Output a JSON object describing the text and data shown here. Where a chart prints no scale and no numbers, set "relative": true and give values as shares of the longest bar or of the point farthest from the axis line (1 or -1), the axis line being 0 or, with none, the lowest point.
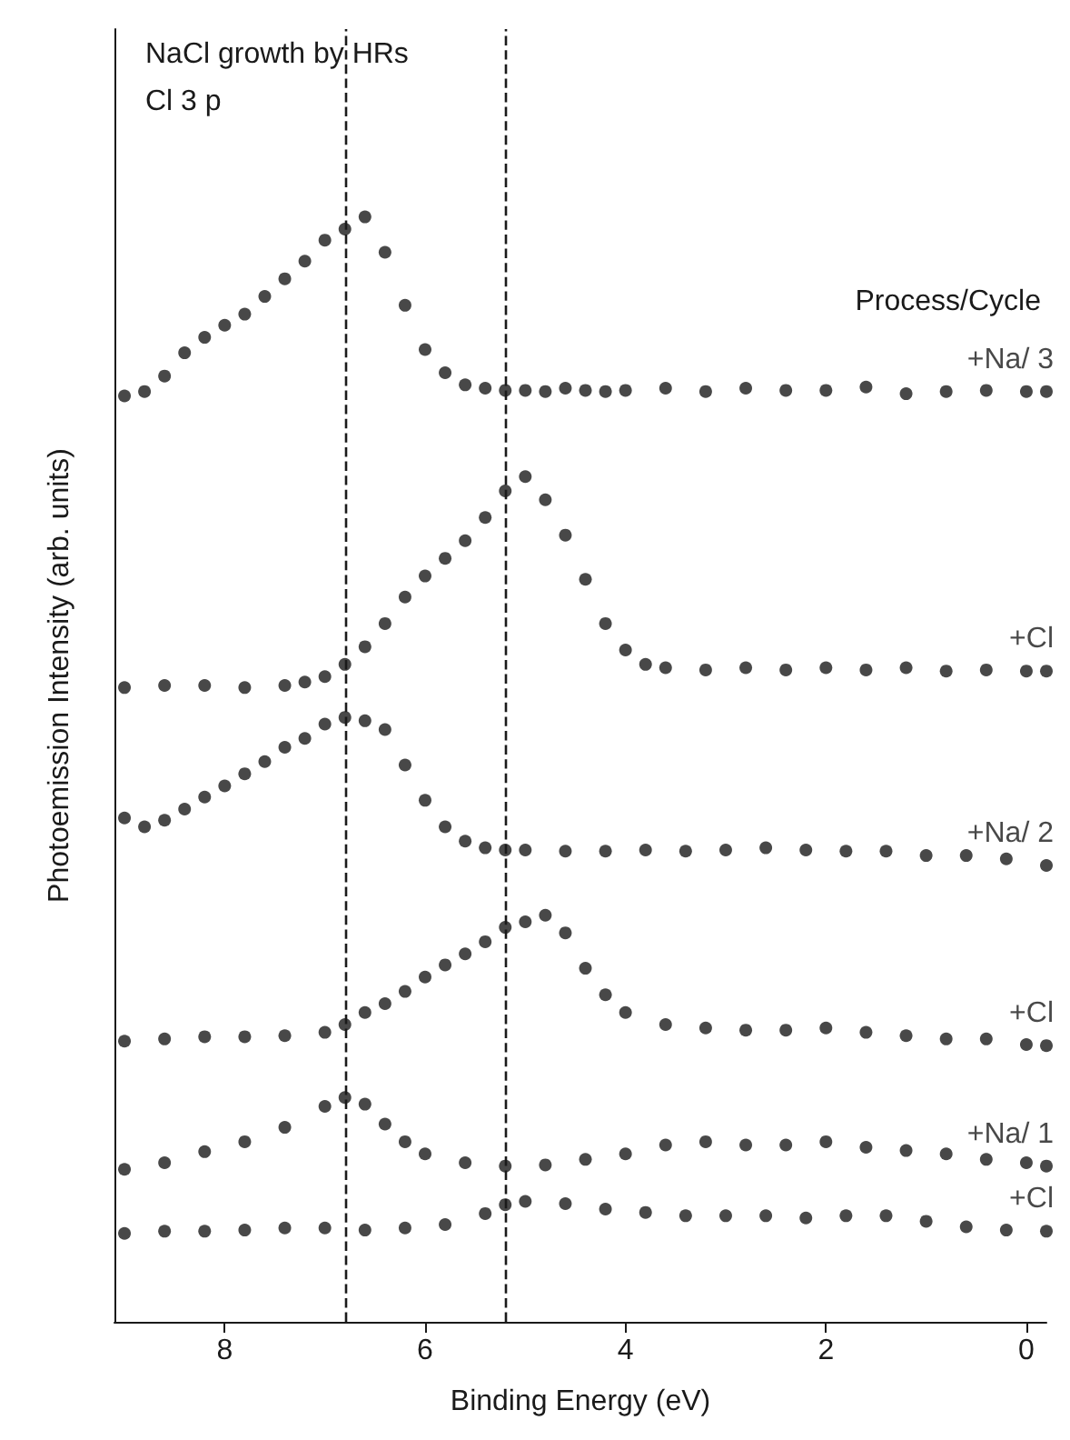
{
  "chart_data": {
    "type": "scatter",
    "relative": true,
    "marker": "circle",
    "xlabel": "Binding Energy (eV)",
    "ylabel": "Photoemission Intensity (arb. units)",
    "legend_title": "Process/Cycle",
    "annotations": [
      "NaCl growth by HRs",
      "Cl 3 p"
    ],
    "xlim": [
      9.1,
      -0.2
    ],
    "xticks": [
      8,
      6,
      4,
      2,
      0
    ],
    "grid": false,
    "legend": false,
    "ref_lines": [
      {
        "axis": "x",
        "value": 6.8,
        "color": "#1a1a1a",
        "line_style": "dashed"
      },
      {
        "axis": "x",
        "value": 5.2,
        "color": "#1a1a1a",
        "line_style": "dashed"
      }
    ],
    "series": [
      {
        "name": "+Na/ 3",
        "color": "#1a1a1a",
        "x": [
          9.0,
          8.8,
          8.6,
          8.4,
          8.2,
          8.0,
          7.8,
          7.6,
          7.4,
          7.2,
          7.0,
          6.8,
          6.6,
          6.4,
          6.2,
          6.0,
          5.8,
          5.6,
          5.4,
          5.2,
          5.0,
          4.8,
          4.6,
          4.4,
          4.2,
          4.0,
          3.6,
          3.2,
          2.8,
          2.4,
          2.0,
          1.6,
          1.2,
          0.8,
          0.4,
          0.0,
          -0.2
        ],
        "values": [
          0.838,
          0.842,
          0.856,
          0.877,
          0.891,
          0.902,
          0.912,
          0.928,
          0.944,
          0.96,
          0.979,
          0.989,
          1.0,
          0.968,
          0.92,
          0.88,
          0.859,
          0.848,
          0.845,
          0.843,
          0.843,
          0.842,
          0.845,
          0.843,
          0.842,
          0.843,
          0.845,
          0.842,
          0.845,
          0.843,
          0.843,
          0.846,
          0.84,
          0.842,
          0.843,
          0.842,
          0.842
        ]
      },
      {
        "name": "+Cl",
        "color": "#1a1a1a",
        "x": [
          9.0,
          8.6,
          8.2,
          7.8,
          7.4,
          7.2,
          7.0,
          6.8,
          6.6,
          6.4,
          6.2,
          6.0,
          5.8,
          5.6,
          5.4,
          5.2,
          5.0,
          4.8,
          4.6,
          4.4,
          4.2,
          4.0,
          3.8,
          3.6,
          3.2,
          2.8,
          2.4,
          2.0,
          1.6,
          1.2,
          0.8,
          0.4,
          0.0,
          -0.2
        ],
        "values": [
          0.574,
          0.576,
          0.576,
          0.574,
          0.576,
          0.579,
          0.584,
          0.595,
          0.611,
          0.632,
          0.656,
          0.675,
          0.691,
          0.707,
          0.728,
          0.752,
          0.765,
          0.744,
          0.712,
          0.672,
          0.632,
          0.608,
          0.595,
          0.592,
          0.59,
          0.592,
          0.59,
          0.592,
          0.59,
          0.592,
          0.589,
          0.59,
          0.589,
          0.589
        ]
      },
      {
        "name": "+Na/ 2",
        "color": "#1a1a1a",
        "x": [
          9.0,
          8.8,
          8.6,
          8.4,
          8.2,
          8.0,
          7.8,
          7.6,
          7.4,
          7.2,
          7.0,
          6.8,
          6.6,
          6.4,
          6.2,
          6.0,
          5.8,
          5.6,
          5.4,
          5.2,
          5.0,
          4.6,
          4.2,
          3.8,
          3.4,
          3.0,
          2.6,
          2.2,
          1.8,
          1.4,
          1.0,
          0.6,
          0.2,
          -0.2
        ],
        "values": [
          0.456,
          0.448,
          0.454,
          0.464,
          0.475,
          0.485,
          0.496,
          0.507,
          0.52,
          0.528,
          0.541,
          0.547,
          0.544,
          0.536,
          0.504,
          0.472,
          0.448,
          0.435,
          0.429,
          0.427,
          0.427,
          0.426,
          0.426,
          0.427,
          0.426,
          0.427,
          0.429,
          0.427,
          0.426,
          0.426,
          0.422,
          0.422,
          0.419,
          0.413
        ]
      },
      {
        "name": "+Cl",
        "color": "#1a1a1a",
        "x": [
          9.0,
          8.6,
          8.2,
          7.8,
          7.4,
          7.0,
          6.8,
          6.6,
          6.4,
          6.2,
          6.0,
          5.8,
          5.6,
          5.4,
          5.2,
          5.0,
          4.8,
          4.6,
          4.4,
          4.2,
          4.0,
          3.6,
          3.2,
          2.8,
          2.4,
          2.0,
          1.6,
          1.2,
          0.8,
          0.4,
          0.0,
          -0.2
        ],
        "values": [
          0.254,
          0.256,
          0.258,
          0.258,
          0.259,
          0.262,
          0.269,
          0.28,
          0.288,
          0.299,
          0.312,
          0.323,
          0.333,
          0.344,
          0.357,
          0.362,
          0.368,
          0.352,
          0.32,
          0.296,
          0.28,
          0.269,
          0.266,
          0.264,
          0.264,
          0.266,
          0.262,
          0.259,
          0.256,
          0.256,
          0.251,
          0.25
        ]
      },
      {
        "name": "+Na/ 1",
        "color": "#1a1a1a",
        "x": [
          9.0,
          8.6,
          8.2,
          7.8,
          7.4,
          7.0,
          6.8,
          6.6,
          6.4,
          6.2,
          6.0,
          5.6,
          5.2,
          4.8,
          4.4,
          4.0,
          3.6,
          3.2,
          2.8,
          2.4,
          2.0,
          1.6,
          1.2,
          0.8,
          0.4,
          0.0,
          -0.2
        ],
        "values": [
          0.138,
          0.144,
          0.154,
          0.163,
          0.176,
          0.195,
          0.203,
          0.197,
          0.179,
          0.163,
          0.152,
          0.144,
          0.141,
          0.142,
          0.147,
          0.152,
          0.16,
          0.163,
          0.16,
          0.16,
          0.163,
          0.158,
          0.155,
          0.152,
          0.147,
          0.144,
          0.141
        ]
      },
      {
        "name": "+Cl",
        "color": "#1a1a1a",
        "x": [
          9.0,
          8.6,
          8.2,
          7.8,
          7.4,
          7.0,
          6.6,
          6.2,
          5.8,
          5.4,
          5.2,
          5.0,
          4.6,
          4.2,
          3.8,
          3.4,
          3.0,
          2.6,
          2.2,
          1.8,
          1.4,
          1.0,
          0.6,
          0.2,
          -0.2
        ],
        "values": [
          0.08,
          0.082,
          0.082,
          0.083,
          0.085,
          0.085,
          0.083,
          0.085,
          0.088,
          0.098,
          0.106,
          0.109,
          0.107,
          0.102,
          0.099,
          0.096,
          0.096,
          0.096,
          0.094,
          0.096,
          0.096,
          0.091,
          0.086,
          0.083,
          0.082
        ]
      }
    ]
  }
}
